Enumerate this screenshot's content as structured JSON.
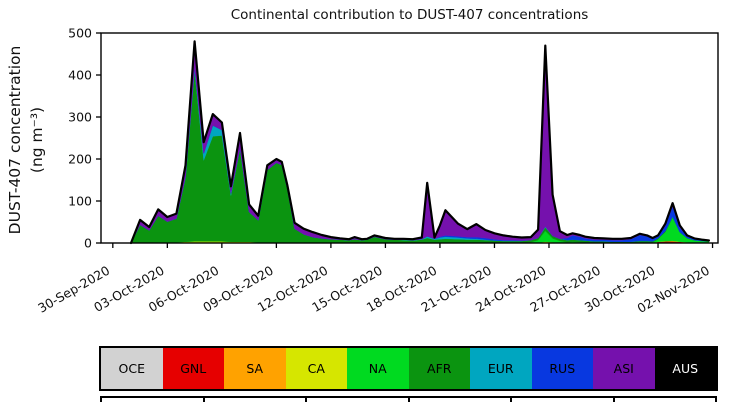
{
  "chart_data": {
    "type": "area",
    "stacked": true,
    "title": "Continental contribution to DUST-407 concentrations",
    "ylabel_line1": "DUST-407 concentration",
    "ylabel_line2": "(ng m⁻³)",
    "ylim": [
      0,
      500
    ],
    "yticks": [
      0,
      100,
      200,
      300,
      400,
      500
    ],
    "xlim": [
      -0.65,
      33.3
    ],
    "x_unit": "days since 30-Sep-2020",
    "grid": false,
    "legend_position": "bottom",
    "outline_color": "#000000",
    "xticks": {
      "positions": [
        0,
        3,
        6,
        9,
        12,
        15,
        18,
        21,
        24,
        27,
        30,
        33
      ],
      "labels": [
        "30-Sep-2020",
        "03-Oct-2020",
        "06-Oct-2020",
        "09-Oct-2020",
        "12-Oct-2020",
        "15-Oct-2020",
        "18-Oct-2020",
        "21-Oct-2020",
        "24-Oct-2020",
        "27-Oct-2020",
        "30-Oct-2020",
        "02-Nov-2020"
      ]
    },
    "x": [
      1.0,
      1.5,
      2.0,
      2.5,
      3.0,
      3.5,
      4.0,
      4.5,
      5.0,
      5.5,
      6.0,
      6.5,
      7.0,
      7.5,
      8.0,
      8.5,
      9.0,
      9.3,
      9.6,
      10.0,
      10.5,
      11.0,
      11.5,
      12.0,
      12.5,
      13.0,
      13.3,
      13.7,
      14.0,
      14.4,
      15.0,
      15.5,
      16.0,
      16.5,
      17.0,
      17.3,
      17.7,
      18.0,
      18.3,
      19.0,
      19.5,
      20.0,
      20.5,
      21.0,
      21.5,
      22.0,
      22.5,
      23.0,
      23.4,
      23.8,
      24.2,
      24.6,
      25.0,
      25.3,
      25.7,
      26.0,
      26.5,
      27.0,
      27.5,
      28.0,
      28.5,
      29.0,
      29.4,
      29.7,
      30.0,
      30.4,
      30.8,
      31.2,
      31.6,
      32.0,
      32.4,
      32.8
    ],
    "series": [
      {
        "name": "OCE",
        "color": "#d2d2d2",
        "values": [
          0,
          0,
          0,
          0,
          0,
          0,
          0,
          0,
          0,
          0,
          0,
          0,
          0,
          0,
          0,
          0,
          0,
          0,
          0,
          0,
          0,
          0,
          0,
          0,
          0,
          0,
          0,
          0,
          0,
          0,
          0,
          0,
          0,
          0,
          0,
          0,
          0,
          0,
          0,
          0,
          0,
          0,
          0,
          0,
          0,
          0,
          0,
          0,
          0,
          0,
          0,
          0,
          0,
          0,
          0,
          0,
          0,
          0,
          0,
          0,
          0,
          0,
          0,
          0,
          0,
          0,
          0,
          0,
          0,
          0,
          0,
          0
        ]
      },
      {
        "name": "GNL",
        "color": "#e60000",
        "values": [
          0,
          0,
          0,
          0,
          0,
          0,
          0,
          0,
          0,
          0,
          0,
          0,
          0,
          0,
          0,
          0,
          0,
          0,
          0,
          0,
          0,
          0,
          0,
          0,
          0,
          0,
          0,
          0,
          0,
          0,
          0,
          0,
          0,
          0,
          0,
          0,
          0,
          0,
          0,
          0,
          0,
          0,
          0,
          0,
          0,
          0,
          0,
          0,
          0,
          0,
          0,
          0,
          0,
          0,
          0,
          0,
          0,
          0,
          0,
          0,
          0,
          0,
          0,
          0,
          3,
          4,
          4,
          3,
          2,
          0,
          0,
          0
        ]
      },
      {
        "name": "SA",
        "color": "#ffa200",
        "values": [
          0,
          0,
          0,
          0,
          0,
          0,
          0,
          0,
          0,
          0,
          0,
          0,
          0,
          0,
          0,
          0,
          0,
          0,
          0,
          0,
          0,
          0,
          0,
          0,
          0,
          0,
          0,
          0,
          0,
          0,
          0,
          0,
          0,
          0,
          0,
          0,
          0,
          0,
          0,
          0,
          0,
          0,
          0,
          0,
          0,
          0,
          0,
          0,
          0,
          0,
          0,
          0,
          0,
          0,
          0,
          0,
          0,
          0,
          0,
          0,
          0,
          0,
          0,
          0,
          0,
          0,
          0,
          0,
          0,
          0,
          0,
          0
        ]
      },
      {
        "name": "CA",
        "color": "#d6e600",
        "values": [
          0,
          1,
          1,
          2,
          2,
          2,
          3,
          4,
          4,
          4,
          4,
          3,
          3,
          3,
          2,
          2,
          2,
          2,
          2,
          2,
          2,
          1,
          1,
          1,
          1,
          0,
          0,
          0,
          0,
          0,
          0,
          0,
          0,
          0,
          0,
          0,
          0,
          0,
          0,
          0,
          0,
          0,
          0,
          0,
          0,
          0,
          0,
          1,
          1,
          3,
          2,
          1,
          0,
          0,
          0,
          0,
          0,
          0,
          0,
          0,
          0,
          0,
          0,
          0,
          0,
          0,
          1,
          0,
          0,
          0,
          0,
          0
        ]
      },
      {
        "name": "NA",
        "color": "#00da20",
        "values": [
          0,
          0,
          0,
          0,
          0,
          0,
          0,
          0,
          0,
          0,
          0,
          0,
          0,
          0,
          0,
          0,
          0,
          0,
          0,
          0,
          0,
          0,
          0,
          0,
          0,
          0,
          0,
          0,
          0,
          0,
          0,
          0,
          0,
          0,
          0,
          0,
          0,
          0,
          0,
          0,
          0,
          0,
          0,
          0,
          0,
          0,
          0,
          1,
          6,
          26,
          9,
          4,
          2,
          3,
          2,
          1,
          0,
          0,
          0,
          0,
          0,
          2,
          2,
          2,
          6,
          22,
          56,
          22,
          9,
          6,
          5,
          4
        ]
      },
      {
        "name": "AFR",
        "color": "#0b9410",
        "values": [
          0,
          42,
          29,
          63,
          49,
          56,
          152,
          406,
          193,
          250,
          252,
          110,
          221,
          71,
          52,
          172,
          189,
          184,
          128,
          32,
          19,
          13,
          10,
          8,
          7,
          7,
          9,
          7,
          8,
          15,
          9,
          8,
          7,
          6,
          8,
          12,
          8,
          9,
          10,
          9,
          8,
          8,
          7,
          6,
          5,
          5,
          5,
          5,
          5,
          8,
          6,
          5,
          5,
          5,
          5,
          5,
          4,
          4,
          3,
          3,
          3,
          3,
          3,
          2,
          2,
          2,
          2,
          1,
          1,
          1,
          0,
          0
        ]
      },
      {
        "name": "EUR",
        "color": "#00a6c0",
        "values": [
          0,
          0,
          0,
          0,
          0,
          0,
          3,
          8,
          16,
          26,
          13,
          5,
          2,
          0,
          0,
          0,
          0,
          0,
          0,
          0,
          0,
          0,
          0,
          0,
          0,
          0,
          0,
          0,
          0,
          0,
          0,
          0,
          1,
          1,
          1,
          4,
          2,
          4,
          5,
          4,
          3,
          2,
          1,
          0,
          0,
          0,
          0,
          0,
          0,
          2,
          0,
          0,
          0,
          0,
          0,
          0,
          0,
          0,
          0,
          0,
          0,
          0,
          0,
          0,
          0,
          0,
          0,
          0,
          0,
          0,
          0,
          0
        ]
      },
      {
        "name": "RUS",
        "color": "#0838e0",
        "values": [
          0,
          0,
          0,
          0,
          0,
          0,
          0,
          0,
          0,
          0,
          0,
          0,
          0,
          0,
          0,
          0,
          0,
          0,
          0,
          0,
          0,
          0,
          0,
          0,
          0,
          0,
          0,
          0,
          0,
          0,
          0,
          0,
          0,
          0,
          0,
          0,
          0,
          2,
          3,
          3,
          3,
          4,
          4,
          3,
          2,
          2,
          1,
          0,
          0,
          0,
          0,
          0,
          5,
          10,
          8,
          5,
          4,
          4,
          4,
          4,
          6,
          14,
          11,
          6,
          5,
          13,
          24,
          11,
          4,
          3,
          2,
          1
        ]
      },
      {
        "name": "ASI",
        "color": "#7511ad",
        "values": [
          0,
          12,
          8,
          15,
          11,
          12,
          27,
          62,
          27,
          27,
          18,
          17,
          36,
          18,
          11,
          11,
          9,
          7,
          8,
          14,
          13,
          12,
          8,
          5,
          3,
          2,
          5,
          2,
          2,
          3,
          3,
          2,
          2,
          2,
          4,
          127,
          3,
          27,
          60,
          30,
          19,
          31,
          19,
          14,
          11,
          8,
          7,
          7,
          20,
          431,
          98,
          18,
          7,
          5,
          4,
          4,
          4,
          3,
          3,
          3,
          3,
          3,
          2,
          2,
          2,
          5,
          8,
          5,
          2,
          1,
          1,
          1
        ]
      },
      {
        "name": "AUS",
        "color": "#000000",
        "values": [
          0,
          0,
          0,
          0,
          0,
          0,
          0,
          0,
          0,
          0,
          0,
          0,
          0,
          0,
          0,
          0,
          0,
          0,
          0,
          0,
          0,
          0,
          0,
          0,
          0,
          0,
          0,
          0,
          0,
          0,
          0,
          0,
          0,
          0,
          0,
          0,
          0,
          0,
          0,
          0,
          0,
          0,
          0,
          0,
          0,
          0,
          0,
          0,
          0,
          0,
          0,
          0,
          0,
          0,
          0,
          0,
          0,
          0,
          0,
          0,
          0,
          0,
          0,
          0,
          0,
          0,
          0,
          0,
          0,
          0,
          0,
          0
        ]
      }
    ]
  }
}
